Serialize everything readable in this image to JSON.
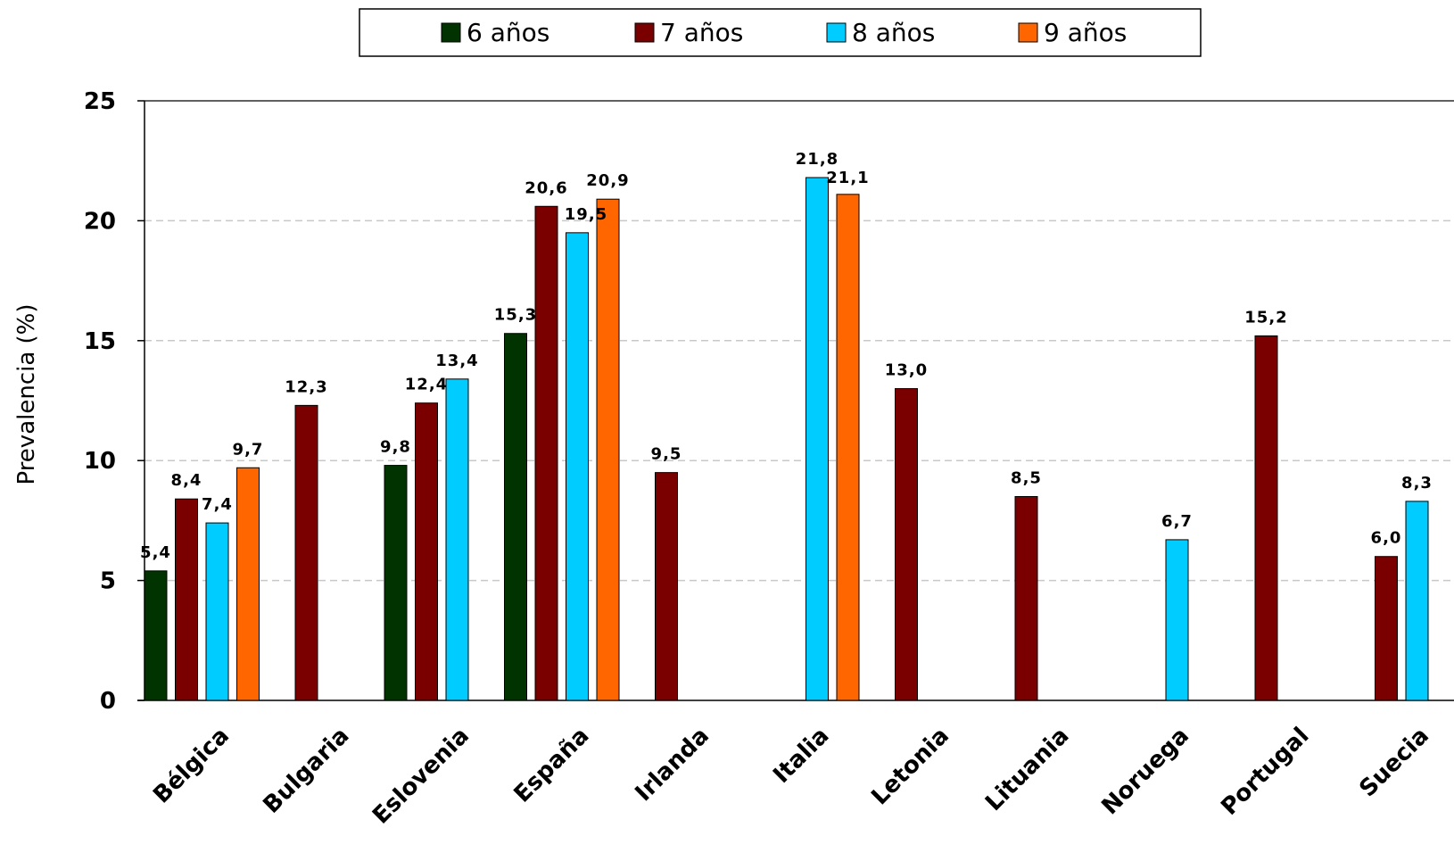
{
  "chart_data": {
    "type": "bar",
    "title": "",
    "xlabel": "",
    "ylabel": "Prevalencia (%)",
    "ylim": [
      0,
      25
    ],
    "yticks": [
      "0",
      "5",
      "10",
      "15",
      "20",
      "25"
    ],
    "ytick_values": [
      0,
      5,
      10,
      15,
      20,
      25
    ],
    "grid": "horizontal dashed",
    "legend_position": "top-center",
    "categories": [
      "Bélgica",
      "Bulgaria",
      "Eslovenia",
      "España",
      "Irlanda",
      "Italia",
      "Letonia",
      "Lituania",
      "Noruega",
      "Portugal",
      "Suecia"
    ],
    "series": [
      {
        "name": "6 años",
        "color": "#003300",
        "values": [
          5.4,
          null,
          9.8,
          15.3,
          null,
          null,
          null,
          null,
          null,
          null,
          null
        ],
        "labels": [
          "5,4",
          null,
          "9,8",
          "15,3",
          null,
          null,
          null,
          null,
          null,
          null,
          null
        ]
      },
      {
        "name": "7 años",
        "color": "#7a0000",
        "values": [
          8.4,
          12.3,
          12.4,
          20.6,
          9.5,
          null,
          13.0,
          8.5,
          null,
          15.2,
          6.0
        ],
        "labels": [
          "8,4",
          "12,3",
          "12,4",
          "20,6",
          "9,5",
          null,
          "13,0",
          "8,5",
          null,
          "15,2",
          "6,0"
        ]
      },
      {
        "name": "8 años",
        "color": "#00ccff",
        "values": [
          7.4,
          null,
          13.4,
          19.5,
          null,
          21.8,
          null,
          null,
          6.7,
          null,
          8.3
        ],
        "labels": [
          "7,4",
          null,
          "13,4",
          "19,5",
          null,
          "21,8",
          null,
          null,
          "6,7",
          null,
          "8,3"
        ]
      },
      {
        "name": "9 años",
        "color": "#ff6600",
        "values": [
          9.7,
          null,
          null,
          20.9,
          null,
          21.1,
          null,
          null,
          null,
          null,
          null
        ],
        "labels": [
          "9,7",
          null,
          null,
          "20,9",
          null,
          "21,1",
          null,
          null,
          null,
          null,
          null
        ]
      }
    ]
  }
}
